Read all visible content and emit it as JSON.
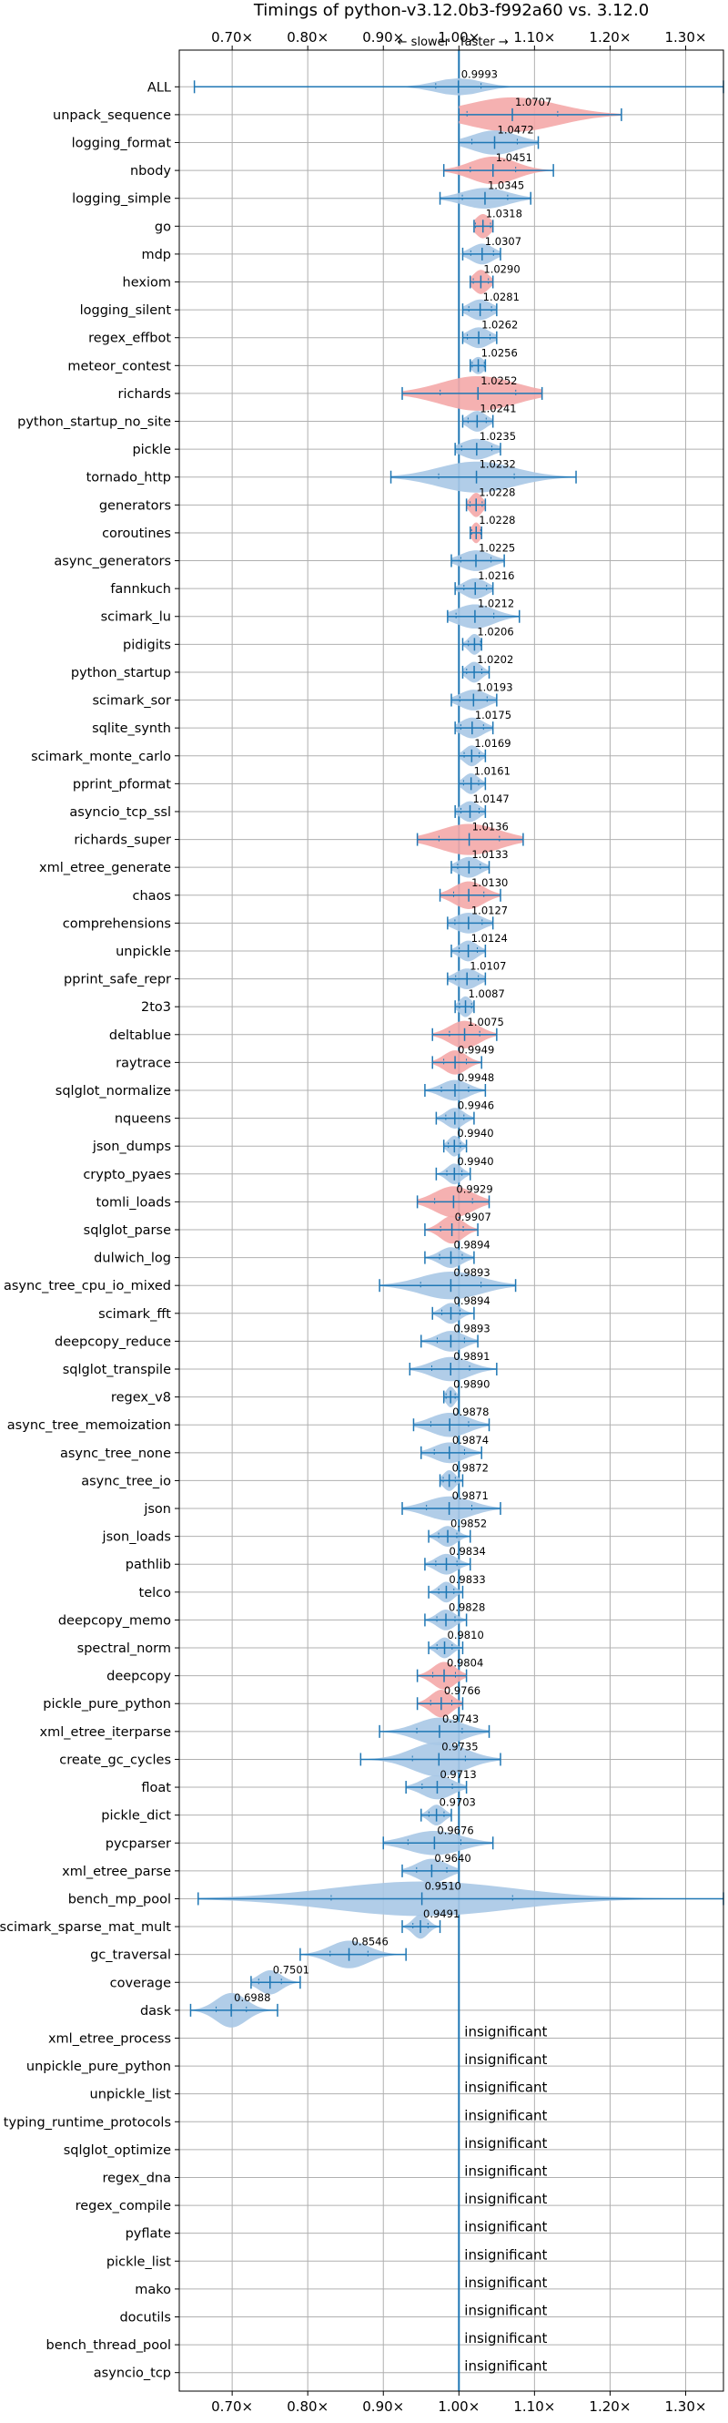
{
  "chart_data": {
    "type": "violin",
    "title": "Timings of python-v3.12.0b3-f992a60 vs. 3.12.0",
    "xlabel": "",
    "ylabel": "",
    "xlim": [
      0.63,
      1.35
    ],
    "x_ticks": [
      0.7,
      0.8,
      0.9,
      1.0,
      1.1,
      1.2,
      1.3
    ],
    "x_tick_labels": [
      "0.70×",
      "0.80×",
      "0.90×",
      "1.00×",
      "1.10×",
      "1.20×",
      "1.30×"
    ],
    "direction_labels": {
      "slower": "← slower",
      "faster": "faster →"
    },
    "grid": true,
    "colors": {
      "faster": "#a9c8e6",
      "slower": "#f4a9a8",
      "line": "#1f77b4",
      "grid": "#b0b0b0"
    },
    "insignificant_label": "insignificant",
    "benchmarks": [
      {
        "name": "ALL",
        "value": 0.9993,
        "color": "faster",
        "min": 0.65,
        "max": 1.35,
        "width": 0.5,
        "spread": 0.03
      },
      {
        "name": "unpack_sequence",
        "value": 1.0707,
        "color": "slower",
        "min": 1.0,
        "max": 1.215,
        "width": 1.0,
        "spread": 0.06
      },
      {
        "name": "logging_format",
        "value": 1.0472,
        "color": "faster",
        "min": 1.0,
        "max": 1.105,
        "width": 0.7,
        "spread": 0.03
      },
      {
        "name": "nbody",
        "value": 1.0451,
        "color": "slower",
        "min": 0.98,
        "max": 1.125,
        "width": 0.8,
        "spread": 0.03
      },
      {
        "name": "logging_simple",
        "value": 1.0345,
        "color": "faster",
        "min": 0.975,
        "max": 1.095,
        "width": 0.6,
        "spread": 0.03
      },
      {
        "name": "go",
        "value": 1.0318,
        "color": "slower",
        "min": 1.02,
        "max": 1.045,
        "width": 0.7,
        "spread": 0.01
      },
      {
        "name": "mdp",
        "value": 1.0307,
        "color": "faster",
        "min": 1.005,
        "max": 1.055,
        "width": 0.6,
        "spread": 0.015
      },
      {
        "name": "hexiom",
        "value": 1.029,
        "color": "slower",
        "min": 1.015,
        "max": 1.045,
        "width": 0.7,
        "spread": 0.01
      },
      {
        "name": "logging_silent",
        "value": 1.0281,
        "color": "faster",
        "min": 1.005,
        "max": 1.05,
        "width": 0.6,
        "spread": 0.015
      },
      {
        "name": "regex_effbot",
        "value": 1.0262,
        "color": "faster",
        "min": 1.005,
        "max": 1.05,
        "width": 0.6,
        "spread": 0.015
      },
      {
        "name": "meteor_contest",
        "value": 1.0256,
        "color": "faster",
        "min": 1.015,
        "max": 1.035,
        "width": 0.5,
        "spread": 0.008
      },
      {
        "name": "richards",
        "value": 1.0252,
        "color": "slower",
        "min": 0.925,
        "max": 1.11,
        "width": 1.0,
        "spread": 0.05
      },
      {
        "name": "python_startup_no_site",
        "value": 1.0241,
        "color": "faster",
        "min": 1.005,
        "max": 1.045,
        "width": 0.6,
        "spread": 0.012
      },
      {
        "name": "pickle",
        "value": 1.0235,
        "color": "faster",
        "min": 0.995,
        "max": 1.055,
        "width": 0.6,
        "spread": 0.02
      },
      {
        "name": "tornado_http",
        "value": 1.0232,
        "color": "faster",
        "min": 0.91,
        "max": 1.155,
        "width": 0.9,
        "spread": 0.05
      },
      {
        "name": "generators",
        "value": 1.0228,
        "color": "slower",
        "min": 1.01,
        "max": 1.035,
        "width": 0.7,
        "spread": 0.008
      },
      {
        "name": "coroutines",
        "value": 1.0228,
        "color": "slower",
        "min": 1.015,
        "max": 1.03,
        "width": 0.6,
        "spread": 0.006
      },
      {
        "name": "async_generators",
        "value": 1.0225,
        "color": "faster",
        "min": 0.99,
        "max": 1.06,
        "width": 0.6,
        "spread": 0.02
      },
      {
        "name": "fannkuch",
        "value": 1.0216,
        "color": "faster",
        "min": 0.995,
        "max": 1.045,
        "width": 0.6,
        "spread": 0.015
      },
      {
        "name": "scimark_lu",
        "value": 1.0212,
        "color": "faster",
        "min": 0.985,
        "max": 1.08,
        "width": 0.7,
        "spread": 0.025
      },
      {
        "name": "pidigits",
        "value": 1.0206,
        "color": "faster",
        "min": 1.005,
        "max": 1.03,
        "width": 0.6,
        "spread": 0.008
      },
      {
        "name": "python_startup",
        "value": 1.0202,
        "color": "faster",
        "min": 1.005,
        "max": 1.04,
        "width": 0.6,
        "spread": 0.01
      },
      {
        "name": "scimark_sor",
        "value": 1.0193,
        "color": "faster",
        "min": 0.99,
        "max": 1.05,
        "width": 0.6,
        "spread": 0.018
      },
      {
        "name": "sqlite_synth",
        "value": 1.0175,
        "color": "faster",
        "min": 0.995,
        "max": 1.045,
        "width": 0.6,
        "spread": 0.015
      },
      {
        "name": "scimark_monte_carlo",
        "value": 1.0169,
        "color": "faster",
        "min": 1.0,
        "max": 1.035,
        "width": 0.6,
        "spread": 0.01
      },
      {
        "name": "pprint_pformat",
        "value": 1.0161,
        "color": "faster",
        "min": 1.0,
        "max": 1.035,
        "width": 0.6,
        "spread": 0.01
      },
      {
        "name": "asyncio_tcp_ssl",
        "value": 1.0147,
        "color": "faster",
        "min": 0.995,
        "max": 1.035,
        "width": 0.6,
        "spread": 0.012
      },
      {
        "name": "richards_super",
        "value": 1.0136,
        "color": "slower",
        "min": 0.945,
        "max": 1.085,
        "width": 0.9,
        "spread": 0.04
      },
      {
        "name": "xml_etree_generate",
        "value": 1.0133,
        "color": "faster",
        "min": 0.99,
        "max": 1.04,
        "width": 0.6,
        "spread": 0.015
      },
      {
        "name": "chaos",
        "value": 1.013,
        "color": "slower",
        "min": 0.975,
        "max": 1.055,
        "width": 0.8,
        "spread": 0.02
      },
      {
        "name": "comprehensions",
        "value": 1.0127,
        "color": "faster",
        "min": 0.985,
        "max": 1.045,
        "width": 0.6,
        "spread": 0.018
      },
      {
        "name": "unpickle",
        "value": 1.0124,
        "color": "faster",
        "min": 0.99,
        "max": 1.035,
        "width": 0.6,
        "spread": 0.012
      },
      {
        "name": "pprint_safe_repr",
        "value": 1.0107,
        "color": "faster",
        "min": 0.985,
        "max": 1.035,
        "width": 0.6,
        "spread": 0.015
      },
      {
        "name": "2to3",
        "value": 1.0087,
        "color": "faster",
        "min": 0.995,
        "max": 1.02,
        "width": 0.6,
        "spread": 0.008
      },
      {
        "name": "deltablue",
        "value": 1.0075,
        "color": "slower",
        "min": 0.965,
        "max": 1.05,
        "width": 0.8,
        "spread": 0.02
      },
      {
        "name": "raytrace",
        "value": 0.9949,
        "color": "slower",
        "min": 0.965,
        "max": 1.03,
        "width": 0.7,
        "spread": 0.015
      },
      {
        "name": "sqlglot_normalize",
        "value": 0.9948,
        "color": "faster",
        "min": 0.955,
        "max": 1.035,
        "width": 0.6,
        "spread": 0.018
      },
      {
        "name": "nqueens",
        "value": 0.9946,
        "color": "faster",
        "min": 0.97,
        "max": 1.02,
        "width": 0.6,
        "spread": 0.012
      },
      {
        "name": "json_dumps",
        "value": 0.994,
        "color": "faster",
        "min": 0.98,
        "max": 1.01,
        "width": 0.6,
        "spread": 0.008
      },
      {
        "name": "crypto_pyaes",
        "value": 0.994,
        "color": "faster",
        "min": 0.97,
        "max": 1.015,
        "width": 0.6,
        "spread": 0.01
      },
      {
        "name": "tomli_loads",
        "value": 0.9929,
        "color": "slower",
        "min": 0.945,
        "max": 1.04,
        "width": 0.9,
        "spread": 0.025
      },
      {
        "name": "sqlglot_parse",
        "value": 0.9907,
        "color": "slower",
        "min": 0.955,
        "max": 1.025,
        "width": 0.8,
        "spread": 0.015
      },
      {
        "name": "dulwich_log",
        "value": 0.9894,
        "color": "faster",
        "min": 0.955,
        "max": 1.02,
        "width": 0.6,
        "spread": 0.015
      },
      {
        "name": "async_tree_cpu_io_mixed",
        "value": 0.9893,
        "color": "faster",
        "min": 0.895,
        "max": 1.075,
        "width": 0.8,
        "spread": 0.04
      },
      {
        "name": "scimark_fft",
        "value": 0.9894,
        "color": "faster",
        "min": 0.965,
        "max": 1.02,
        "width": 0.6,
        "spread": 0.012
      },
      {
        "name": "deepcopy_reduce",
        "value": 0.9893,
        "color": "faster",
        "min": 0.95,
        "max": 1.025,
        "width": 0.6,
        "spread": 0.018
      },
      {
        "name": "sqlglot_transpile",
        "value": 0.9891,
        "color": "faster",
        "min": 0.935,
        "max": 1.05,
        "width": 0.7,
        "spread": 0.025
      },
      {
        "name": "regex_v8",
        "value": 0.989,
        "color": "faster",
        "min": 0.98,
        "max": 1.0,
        "width": 0.6,
        "spread": 0.006
      },
      {
        "name": "async_tree_memoization",
        "value": 0.9878,
        "color": "faster",
        "min": 0.94,
        "max": 1.04,
        "width": 0.7,
        "spread": 0.025
      },
      {
        "name": "async_tree_none",
        "value": 0.9874,
        "color": "faster",
        "min": 0.95,
        "max": 1.03,
        "width": 0.6,
        "spread": 0.02
      },
      {
        "name": "async_tree_io",
        "value": 0.9872,
        "color": "faster",
        "min": 0.975,
        "max": 1.005,
        "width": 0.6,
        "spread": 0.008
      },
      {
        "name": "json",
        "value": 0.9871,
        "color": "faster",
        "min": 0.925,
        "max": 1.055,
        "width": 0.7,
        "spread": 0.03
      },
      {
        "name": "json_loads",
        "value": 0.9852,
        "color": "faster",
        "min": 0.96,
        "max": 1.015,
        "width": 0.6,
        "spread": 0.012
      },
      {
        "name": "pathlib",
        "value": 0.9834,
        "color": "faster",
        "min": 0.955,
        "max": 1.015,
        "width": 0.6,
        "spread": 0.014
      },
      {
        "name": "telco",
        "value": 0.9833,
        "color": "faster",
        "min": 0.96,
        "max": 1.005,
        "width": 0.6,
        "spread": 0.01
      },
      {
        "name": "deepcopy_memo",
        "value": 0.9828,
        "color": "faster",
        "min": 0.955,
        "max": 1.01,
        "width": 0.6,
        "spread": 0.012
      },
      {
        "name": "spectral_norm",
        "value": 0.981,
        "color": "faster",
        "min": 0.96,
        "max": 1.005,
        "width": 0.6,
        "spread": 0.01
      },
      {
        "name": "deepcopy",
        "value": 0.9804,
        "color": "slower",
        "min": 0.945,
        "max": 1.01,
        "width": 0.8,
        "spread": 0.015
      },
      {
        "name": "pickle_pure_python",
        "value": 0.9766,
        "color": "slower",
        "min": 0.945,
        "max": 1.005,
        "width": 0.8,
        "spread": 0.014
      },
      {
        "name": "xml_etree_iterparse",
        "value": 0.9743,
        "color": "faster",
        "min": 0.895,
        "max": 1.04,
        "width": 0.8,
        "spread": 0.03
      },
      {
        "name": "create_gc_cycles",
        "value": 0.9735,
        "color": "faster",
        "min": 0.87,
        "max": 1.055,
        "width": 1.0,
        "spread": 0.035
      },
      {
        "name": "float",
        "value": 0.9713,
        "color": "faster",
        "min": 0.93,
        "max": 1.01,
        "width": 0.7,
        "spread": 0.02
      },
      {
        "name": "pickle_dict",
        "value": 0.9703,
        "color": "faster",
        "min": 0.95,
        "max": 0.99,
        "width": 0.6,
        "spread": 0.01
      },
      {
        "name": "pycparser",
        "value": 0.9676,
        "color": "faster",
        "min": 0.9,
        "max": 1.045,
        "width": 0.7,
        "spread": 0.035
      },
      {
        "name": "xml_etree_parse",
        "value": 0.964,
        "color": "faster",
        "min": 0.925,
        "max": 1.0,
        "width": 0.7,
        "spread": 0.02
      },
      {
        "name": "bench_mp_pool",
        "value": 0.951,
        "color": "faster",
        "min": 0.655,
        "max": 1.35,
        "width": 1.0,
        "spread": 0.12
      },
      {
        "name": "scimark_sparse_mat_mult",
        "value": 0.9491,
        "color": "faster",
        "min": 0.925,
        "max": 0.975,
        "width": 0.7,
        "spread": 0.01
      },
      {
        "name": "gc_traversal",
        "value": 0.8546,
        "color": "faster",
        "min": 0.79,
        "max": 0.93,
        "width": 0.8,
        "spread": 0.025
      },
      {
        "name": "coverage",
        "value": 0.7501,
        "color": "faster",
        "min": 0.725,
        "max": 0.79,
        "width": 0.7,
        "spread": 0.015
      },
      {
        "name": "dask",
        "value": 0.6988,
        "color": "faster",
        "min": 0.645,
        "max": 0.76,
        "width": 1.0,
        "spread": 0.02
      },
      {
        "name": "xml_etree_process",
        "value": null
      },
      {
        "name": "unpickle_pure_python",
        "value": null
      },
      {
        "name": "unpickle_list",
        "value": null
      },
      {
        "name": "typing_runtime_protocols",
        "value": null
      },
      {
        "name": "sqlglot_optimize",
        "value": null
      },
      {
        "name": "regex_dna",
        "value": null
      },
      {
        "name": "regex_compile",
        "value": null
      },
      {
        "name": "pyflate",
        "value": null
      },
      {
        "name": "pickle_list",
        "value": null
      },
      {
        "name": "mako",
        "value": null
      },
      {
        "name": "docutils",
        "value": null
      },
      {
        "name": "bench_thread_pool",
        "value": null
      },
      {
        "name": "asyncio_tcp",
        "value": null
      }
    ]
  }
}
